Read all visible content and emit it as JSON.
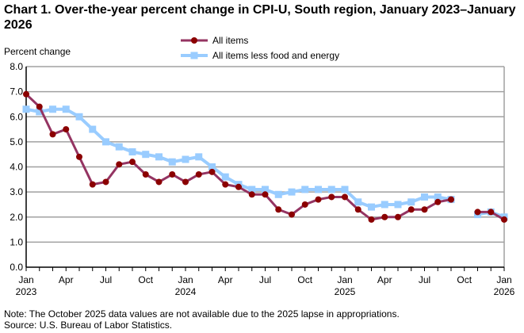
{
  "chart_data": {
    "type": "line",
    "title": "Chart 1. Over-the-year percent change in CPI-U, South region, January 2023–January 2026",
    "ylabel": "Percent change",
    "xlabel": "",
    "ylim": [
      0,
      8
    ],
    "yticks": [
      "0.0",
      "1.0",
      "2.0",
      "3.0",
      "4.0",
      "5.0",
      "6.0",
      "7.0",
      "8.0"
    ],
    "grid": true,
    "legend_position": "top-center",
    "x_tick_labels": [
      {
        "index": 0,
        "month": "Jan",
        "year": "2023"
      },
      {
        "index": 3,
        "month": "Apr",
        "year": ""
      },
      {
        "index": 6,
        "month": "Jul",
        "year": ""
      },
      {
        "index": 9,
        "month": "Oct",
        "year": ""
      },
      {
        "index": 12,
        "month": "Jan",
        "year": "2024"
      },
      {
        "index": 15,
        "month": "Apr",
        "year": ""
      },
      {
        "index": 18,
        "month": "Jul",
        "year": ""
      },
      {
        "index": 21,
        "month": "Oct",
        "year": ""
      },
      {
        "index": 24,
        "month": "Jan",
        "year": "2025"
      },
      {
        "index": 27,
        "month": "Apr",
        "year": ""
      },
      {
        "index": 30,
        "month": "Jul",
        "year": ""
      },
      {
        "index": 33,
        "month": "Oct",
        "year": ""
      },
      {
        "index": 36,
        "month": "Jan",
        "year": "2026"
      }
    ],
    "series": [
      {
        "name": "All items",
        "color": "#8b0000",
        "line_color": "#943462",
        "marker": "circle",
        "values": [
          6.9,
          6.4,
          5.3,
          5.5,
          4.4,
          3.3,
          3.4,
          4.1,
          4.2,
          3.7,
          3.4,
          3.7,
          3.4,
          3.7,
          3.8,
          3.3,
          3.2,
          2.9,
          2.9,
          2.3,
          2.1,
          2.5,
          2.7,
          2.8,
          2.8,
          2.3,
          1.9,
          2.0,
          2.0,
          2.3,
          2.3,
          2.6,
          2.7,
          null,
          2.2,
          2.2,
          1.9
        ]
      },
      {
        "name": "All items less food and energy",
        "color": "#99ccff",
        "line_color": "#99ccff",
        "marker": "square",
        "values": [
          6.3,
          6.2,
          6.3,
          6.3,
          6.0,
          5.5,
          5.0,
          4.8,
          4.6,
          4.5,
          4.4,
          4.2,
          4.3,
          4.4,
          4.0,
          3.6,
          3.3,
          3.1,
          3.1,
          2.9,
          3.0,
          3.1,
          3.1,
          3.1,
          3.1,
          2.6,
          2.4,
          2.5,
          2.5,
          2.6,
          2.8,
          2.8,
          2.7,
          null,
          2.1,
          2.2,
          2.0
        ]
      }
    ]
  },
  "notes": {
    "note": "Note: The October 2025 data values are not available due to the 2025 lapse in appropriations.",
    "source": "Source: U.S. Bureau of Labor Statistics."
  }
}
